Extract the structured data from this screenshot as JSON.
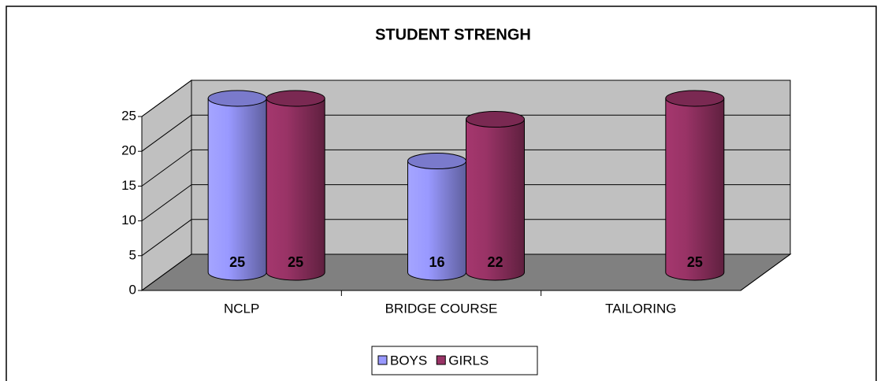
{
  "chart_data": {
    "type": "bar",
    "title": "STUDENT STRENGH",
    "categories": [
      "NCLP",
      "BRIDGE COURSE",
      "TAILORING"
    ],
    "series": [
      {
        "name": "BOYS",
        "color": "#9999ff",
        "values": [
          25,
          16,
          null
        ]
      },
      {
        "name": "GIRLS",
        "color": "#993366",
        "values": [
          25,
          22,
          25
        ]
      }
    ],
    "ylim": [
      0,
      25
    ],
    "yticks": [
      0,
      5,
      10,
      15,
      20,
      25
    ],
    "grid": true,
    "legend": "bottom"
  }
}
